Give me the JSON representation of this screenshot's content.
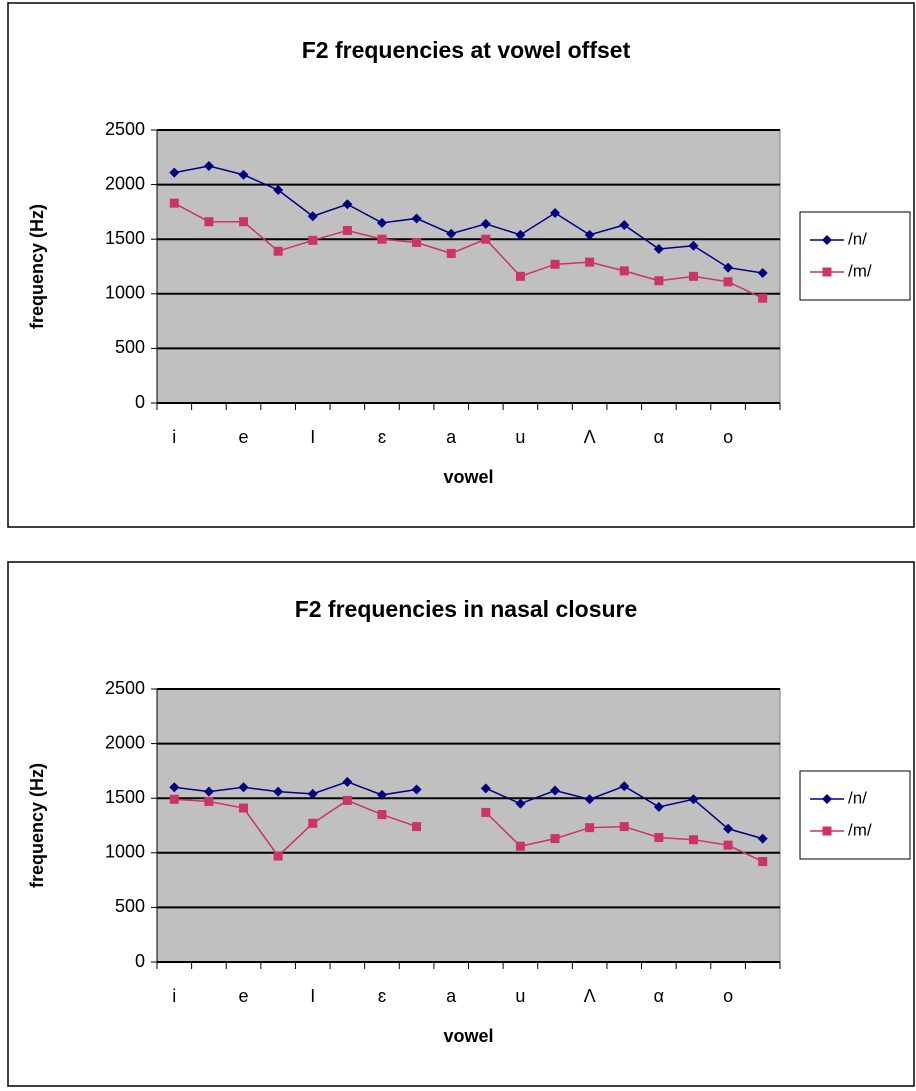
{
  "chart_data": [
    {
      "type": "line",
      "title": "F2 frequencies at vowel offset",
      "x_label": "vowel",
      "y_label": "frequency (Hz)",
      "categories": [
        "i",
        null,
        "e",
        null,
        "I",
        null,
        "ɛ",
        null,
        "a",
        null,
        "u",
        null,
        "Λ",
        null,
        "α",
        null,
        "o",
        null
      ],
      "series": [
        {
          "name": "/n/",
          "color": "#000080",
          "marker": "diamond",
          "values": [
            2110,
            2170,
            2090,
            1950,
            1710,
            1820,
            1650,
            1690,
            1550,
            1640,
            1540,
            1740,
            1540,
            1630,
            1410,
            1440,
            1240,
            1190
          ]
        },
        {
          "name": "/m/",
          "color": "#cc3366",
          "marker": "square",
          "values": [
            1830,
            1660,
            1660,
            1390,
            1490,
            1580,
            1500,
            1470,
            1370,
            1500,
            1160,
            1270,
            1290,
            1210,
            1120,
            1160,
            1110,
            960
          ]
        }
      ],
      "ylim": [
        0,
        2500
      ],
      "yticks": [
        0,
        500,
        1000,
        1500,
        2000,
        2500
      ],
      "grid": true,
      "legend": "right"
    },
    {
      "type": "line",
      "title": "F2 frequencies in nasal closure",
      "x_label": "vowel",
      "y_label": "frequency (Hz)",
      "categories": [
        "i",
        null,
        "e",
        null,
        "I",
        null,
        "ɛ",
        null,
        "a",
        null,
        "u",
        null,
        "Λ",
        null,
        "α",
        null,
        "o",
        null
      ],
      "series": [
        {
          "name": "/n/",
          "color": "#000080",
          "marker": "diamond",
          "values": [
            1600,
            1560,
            1600,
            1560,
            1540,
            1650,
            1530,
            1580,
            null,
            1590,
            1450,
            1570,
            1490,
            1610,
            1420,
            1490,
            1220,
            1130
          ]
        },
        {
          "name": "/m/",
          "color": "#cc3366",
          "marker": "square",
          "values": [
            1490,
            1470,
            1410,
            970,
            1270,
            1480,
            1350,
            1240,
            null,
            1370,
            1060,
            1130,
            1230,
            1240,
            1140,
            1120,
            1070,
            920
          ]
        }
      ],
      "ylim": [
        0,
        2500
      ],
      "yticks": [
        0,
        500,
        1000,
        1500,
        2000,
        2500
      ],
      "grid": true,
      "legend": "right"
    }
  ]
}
